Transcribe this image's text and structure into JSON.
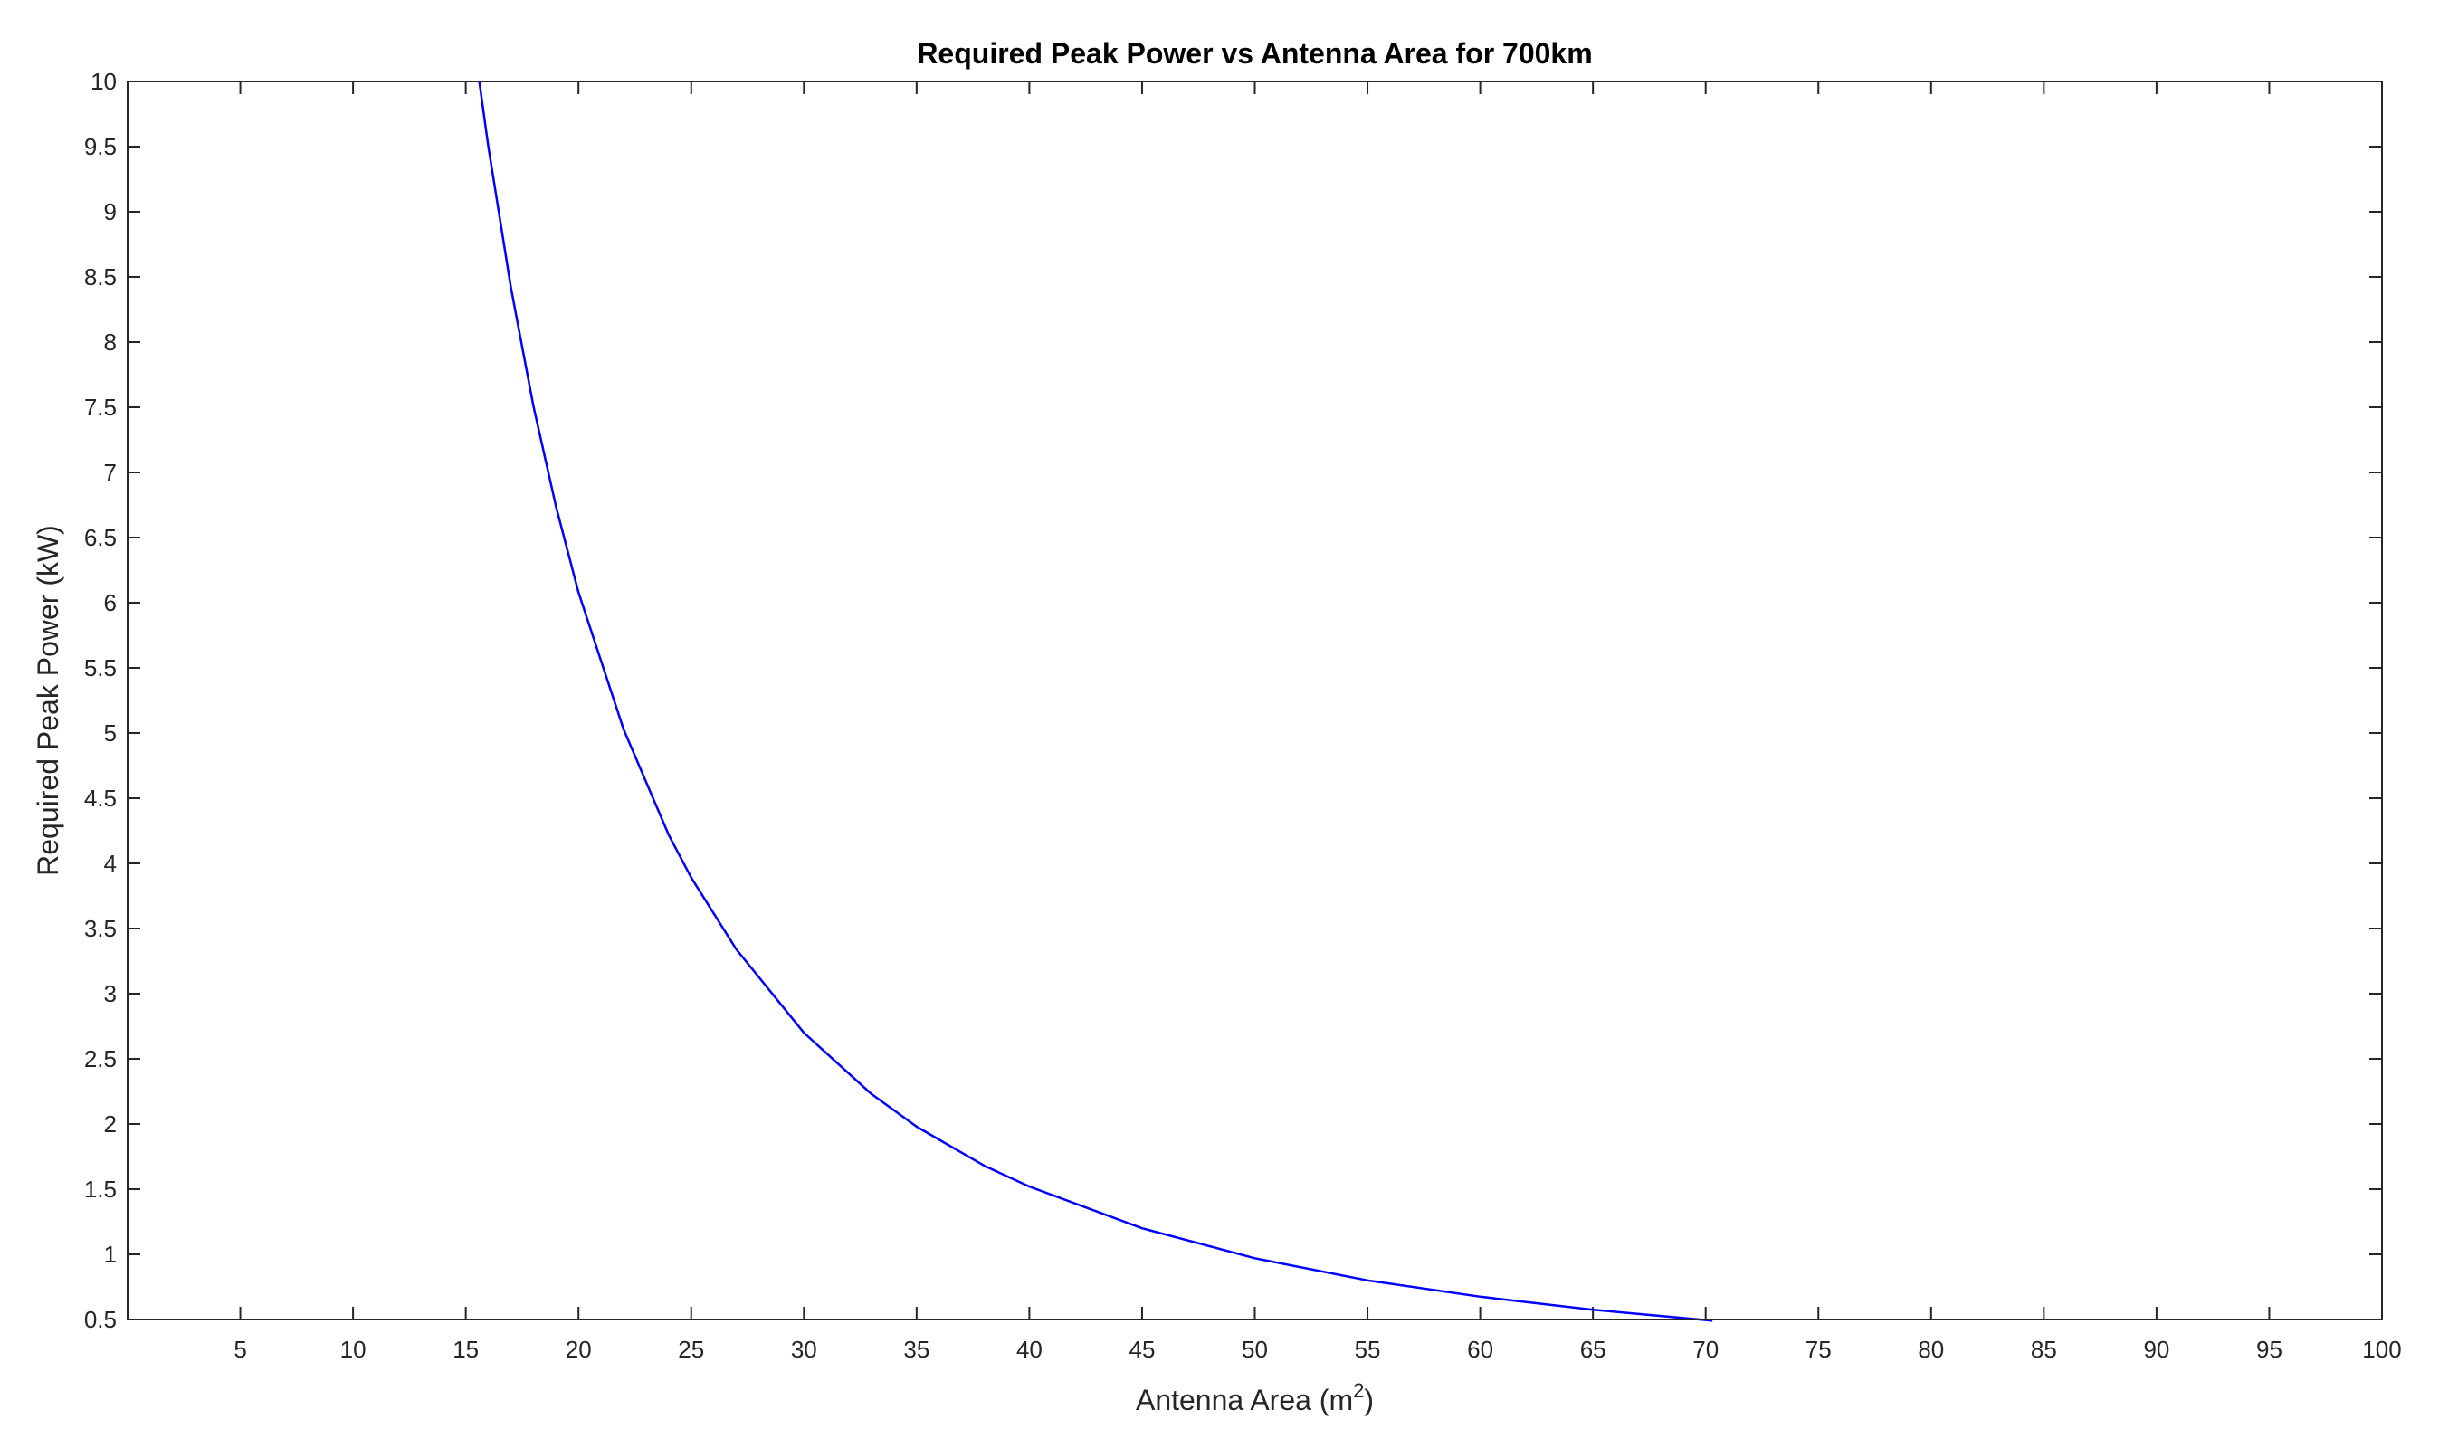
{
  "chart_data": {
    "type": "line",
    "title": "Required Peak Power vs Antenna Area for 700km",
    "xlabel": {
      "text": "Antenna Area (m",
      "sup": "2",
      "suffix": ")"
    },
    "ylabel": "Required Peak Power (kW)",
    "xlim": [
      0,
      100
    ],
    "ylim": [
      0.5,
      10
    ],
    "xticks": [
      5,
      10,
      15,
      20,
      25,
      30,
      35,
      40,
      45,
      50,
      55,
      60,
      65,
      70,
      75,
      80,
      85,
      90,
      95,
      100
    ],
    "yticks": [
      0.5,
      1,
      1.5,
      2,
      2.5,
      3,
      3.5,
      4,
      4.5,
      5,
      5.5,
      6,
      6.5,
      7,
      7.5,
      8,
      8.5,
      9,
      9.5,
      10
    ],
    "grid": false,
    "legend": "none",
    "series": [
      {
        "color": "#0000ff",
        "x": [
          15.6,
          16,
          17,
          18,
          19,
          20,
          22,
          24,
          25,
          27,
          30,
          33,
          35,
          38,
          40,
          45,
          50,
          55,
          60,
          65,
          70,
          70.3
        ],
        "y": [
          10,
          9.5,
          8.42,
          7.51,
          6.74,
          6.08,
          5.03,
          4.22,
          3.89,
          3.34,
          2.7,
          2.23,
          1.98,
          1.68,
          1.52,
          1.2,
          0.97,
          0.8,
          0.675,
          0.575,
          0.496,
          0.49
        ]
      }
    ]
  }
}
